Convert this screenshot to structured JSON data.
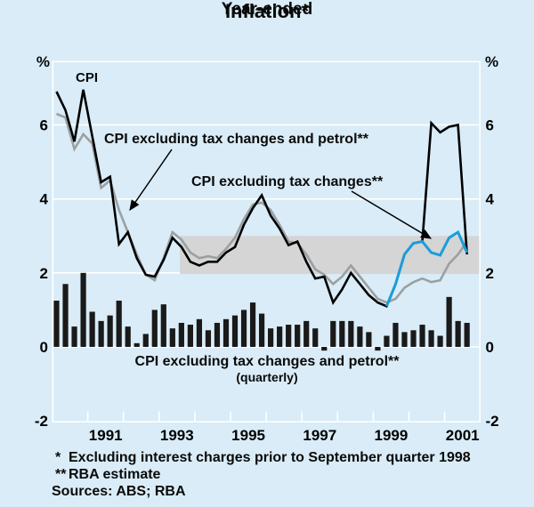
{
  "title": "Inflation*",
  "subtitle": "Year-ended",
  "labels": {
    "cpi": "CPI",
    "ex_tax_petrol": "CPI excluding tax changes and petrol**",
    "ex_tax": "CPI excluding tax changes**",
    "bars_line1": "CPI excluding tax changes and petrol**",
    "bars_line2": "(quarterly)"
  },
  "footnotes": [
    {
      "marker": "*",
      "text": "Excluding interest charges prior to September quarter 1998"
    },
    {
      "marker": "**",
      "text": "RBA estimate"
    },
    {
      "marker": "",
      "text": "Sources: ABS; RBA"
    }
  ],
  "colors": {
    "background": "#d9ecf7",
    "grid": "#ffffff",
    "target_band": "#d5d5d5",
    "cpi_line": "#000000",
    "ex_tax_petrol_line": "#9aa0a3",
    "ex_tax_line": "#1b9dd9",
    "bars": "#1a1a1a",
    "text": "#000000"
  },
  "axes": {
    "y_unit": "%",
    "y_ticks": [
      6,
      4,
      2,
      0,
      -2
    ],
    "y_range": [
      -2,
      7.7
    ],
    "x_tick_years": [
      1991,
      1992,
      1993,
      1994,
      1995,
      1996,
      1997,
      1998,
      1999,
      2000,
      2001
    ],
    "x_labels": [
      "1991",
      "1993",
      "1995",
      "1997",
      "1999",
      "2001"
    ],
    "x_range_years": [
      1990,
      2002
    ]
  },
  "chart_data": {
    "type": "line+bar",
    "frequency": "quarterly",
    "start_quarter": "1990 Q1",
    "end_quarter": "2001 Q3",
    "title": "Inflation* — Year-ended",
    "target_band": {
      "low": 2,
      "high": 3,
      "start_quarter": "1993 Q3",
      "note": "grey shaded 2-3% band"
    },
    "series": [
      {
        "name": "CPI",
        "style": "line",
        "start_index": 0,
        "values": [
          6.9,
          6.4,
          5.55,
          6.95,
          5.7,
          4.45,
          4.6,
          2.78,
          3.1,
          2.4,
          1.95,
          1.9,
          2.35,
          2.95,
          2.7,
          2.3,
          2.2,
          2.3,
          2.3,
          2.55,
          2.7,
          3.3,
          3.75,
          4.1,
          3.55,
          3.2,
          2.75,
          2.85,
          2.3,
          1.85,
          1.9,
          1.2,
          1.55,
          2.0,
          1.7,
          1.4,
          1.2,
          1.1,
          1.7,
          2.5,
          2.8,
          2.85,
          6.05,
          5.8,
          5.95,
          6.0,
          2.5
        ]
      },
      {
        "name": "CPI excluding tax changes and petrol (year-ended)",
        "style": "line",
        "start_index": 0,
        "values": [
          6.3,
          6.2,
          5.35,
          5.75,
          5.5,
          4.3,
          4.5,
          3.7,
          3.1,
          2.5,
          1.95,
          1.8,
          2.4,
          3.1,
          2.9,
          2.55,
          2.4,
          2.45,
          2.4,
          2.65,
          2.95,
          3.45,
          3.85,
          3.9,
          3.7,
          3.3,
          2.85,
          2.8,
          2.5,
          2.1,
          1.95,
          1.7,
          1.9,
          2.2,
          1.9,
          1.6,
          1.3,
          1.2,
          1.3,
          1.6,
          1.75,
          1.85,
          1.75,
          1.8,
          2.25,
          2.5,
          2.85
        ]
      },
      {
        "name": "CPI excluding tax changes",
        "style": "line",
        "start_index": 37,
        "values": [
          1.1,
          1.7,
          2.5,
          2.8,
          2.85,
          2.55,
          2.48,
          2.95,
          3.1,
          2.55
        ]
      },
      {
        "name": "CPI excluding tax changes and petrol (quarterly)",
        "style": "bar",
        "start_index": 0,
        "values": [
          1.25,
          1.7,
          0.55,
          2.0,
          0.95,
          0.7,
          0.85,
          1.25,
          0.55,
          0.1,
          0.35,
          1.0,
          1.15,
          0.5,
          0.65,
          0.6,
          0.75,
          0.45,
          0.65,
          0.75,
          0.85,
          1.0,
          1.2,
          0.9,
          0.5,
          0.55,
          0.6,
          0.6,
          0.7,
          0.5,
          -0.1,
          0.7,
          0.7,
          0.7,
          0.55,
          0.4,
          -0.1,
          0.3,
          0.65,
          0.4,
          0.45,
          0.6,
          0.45,
          0.3,
          1.35,
          0.7,
          0.65
        ]
      }
    ],
    "annotations": [
      {
        "label": "CPI",
        "points_to": "CPI line, 1990 peak"
      },
      {
        "label": "CPI excluding tax changes and petrol**",
        "points_to": "grey line, early 1992",
        "arrow": true
      },
      {
        "label": "CPI excluding tax changes**",
        "points_to": "blue line, mid 2000",
        "arrow": true
      }
    ]
  }
}
